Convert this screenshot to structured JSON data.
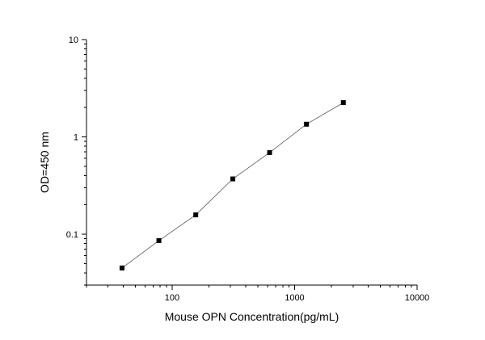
{
  "chart_data": {
    "type": "scatter",
    "xlabel": "Mouse OPN Concentration(pg/mL)",
    "ylabel": "OD=450 nm",
    "xscale": "log",
    "yscale": "log",
    "xlim": [
      20,
      10000
    ],
    "ylim": [
      0.03,
      10
    ],
    "xticks": [
      100,
      1000,
      10000
    ],
    "xtick_labels": [
      "100",
      "1000",
      "10000"
    ],
    "yticks": [
      0.1,
      1,
      10
    ],
    "ytick_labels": [
      "0.1",
      "1",
      "10"
    ],
    "grid": false,
    "legend": "none",
    "series": [
      {
        "x": [
          39,
          78,
          156,
          313,
          625,
          1250,
          2500
        ],
        "y": [
          0.045,
          0.086,
          0.158,
          0.37,
          0.69,
          1.35,
          2.25
        ],
        "connected": true,
        "marker": "square",
        "color": "#000000",
        "line_color": "#555555"
      }
    ]
  }
}
